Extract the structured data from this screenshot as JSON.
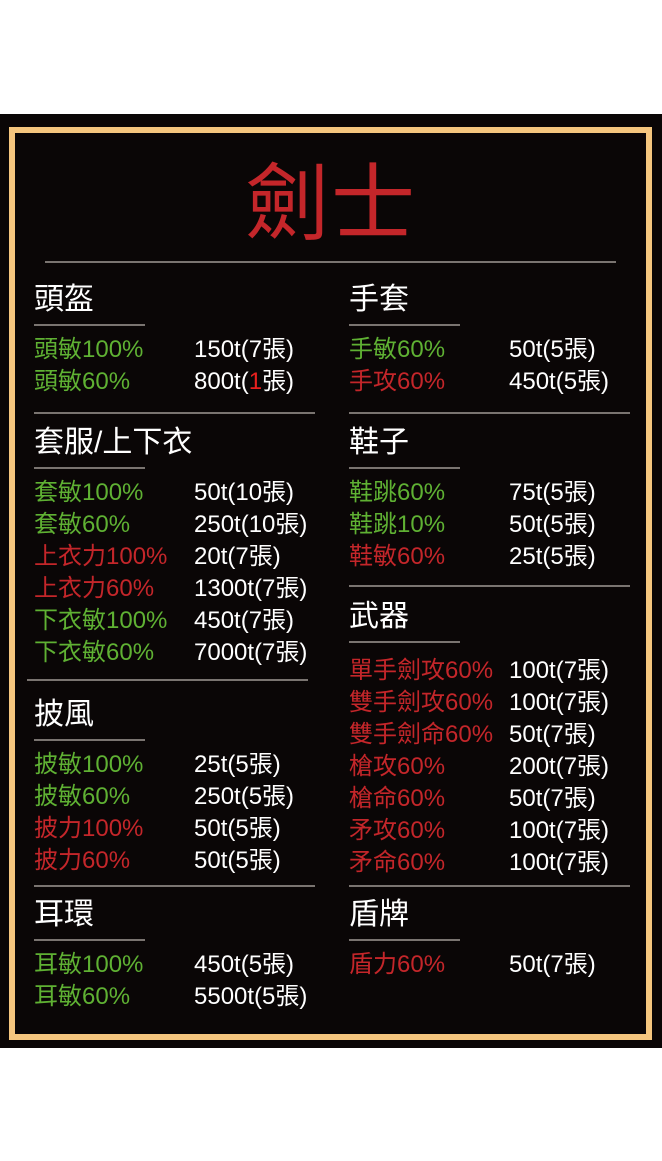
{
  "title": "劍士",
  "colors": {
    "green": "#5fb133",
    "red": "#c4262a",
    "highlight": "#e8201e",
    "border": "#f5c67e",
    "background": "#0a0606"
  },
  "sections": [
    {
      "heading": "頭盔",
      "items": [
        {
          "name": "頭敏100%",
          "value": "150t(7張)",
          "color": "green"
        },
        {
          "name": "頭敏60%",
          "value": "800t(1張)",
          "color": "green",
          "highlight": "1"
        }
      ]
    },
    {
      "heading": "套服/上下衣",
      "items": [
        {
          "name": "套敏100%",
          "value": "50t(10張)",
          "color": "green"
        },
        {
          "name": "套敏60%",
          "value": "250t(10張)",
          "color": "green"
        },
        {
          "name": "上衣力100%",
          "value": "20t(7張)",
          "color": "red"
        },
        {
          "name": "上衣力60%",
          "value": "1300t(7張)",
          "color": "red"
        },
        {
          "name": "下衣敏100%",
          "value": "450t(7張)",
          "color": "green"
        },
        {
          "name": "下衣敏60%",
          "value": "7000t(7張)",
          "color": "green"
        }
      ]
    },
    {
      "heading": "披風",
      "items": [
        {
          "name": "披敏100%",
          "value": "25t(5張)",
          "color": "green"
        },
        {
          "name": "披敏60%",
          "value": "250t(5張)",
          "color": "green"
        },
        {
          "name": "披力100%",
          "value": "50t(5張)",
          "color": "red"
        },
        {
          "name": "披力60%",
          "value": "50t(5張)",
          "color": "red"
        }
      ]
    },
    {
      "heading": "耳環",
      "items": [
        {
          "name": "耳敏100%",
          "value": "450t(5張)",
          "color": "green"
        },
        {
          "name": "耳敏60%",
          "value": "5500t(5張)",
          "color": "green"
        }
      ]
    },
    {
      "heading": "手套",
      "items": [
        {
          "name": "手敏60%",
          "value": "50t(5張)",
          "color": "green"
        },
        {
          "name": "手攻60%",
          "value": "450t(5張)",
          "color": "red"
        }
      ]
    },
    {
      "heading": "鞋子",
      "items": [
        {
          "name": "鞋跳60%",
          "value": "75t(5張)",
          "color": "green"
        },
        {
          "name": "鞋跳10%",
          "value": "50t(5張)",
          "color": "green"
        },
        {
          "name": "鞋敏60%",
          "value": "25t(5張)",
          "color": "red"
        }
      ]
    },
    {
      "heading": "武器",
      "items": [
        {
          "name": "單手劍攻60%",
          "value": "100t(7張)",
          "color": "red"
        },
        {
          "name": "雙手劍攻60%",
          "value": "100t(7張)",
          "color": "red"
        },
        {
          "name": "雙手劍命60%",
          "value": "50t(7張)",
          "color": "red"
        },
        {
          "name": "槍攻60%",
          "value": "200t(7張)",
          "color": "red"
        },
        {
          "name": "槍命60%",
          "value": "50t(7張)",
          "color": "red"
        },
        {
          "name": "矛攻60%",
          "value": "100t(7張)",
          "color": "red"
        },
        {
          "name": "矛命60%",
          "value": "100t(7張)",
          "color": "red"
        }
      ]
    },
    {
      "heading": "盾牌",
      "items": [
        {
          "name": "盾力60%",
          "value": "50t(7張)",
          "color": "red"
        }
      ]
    }
  ]
}
